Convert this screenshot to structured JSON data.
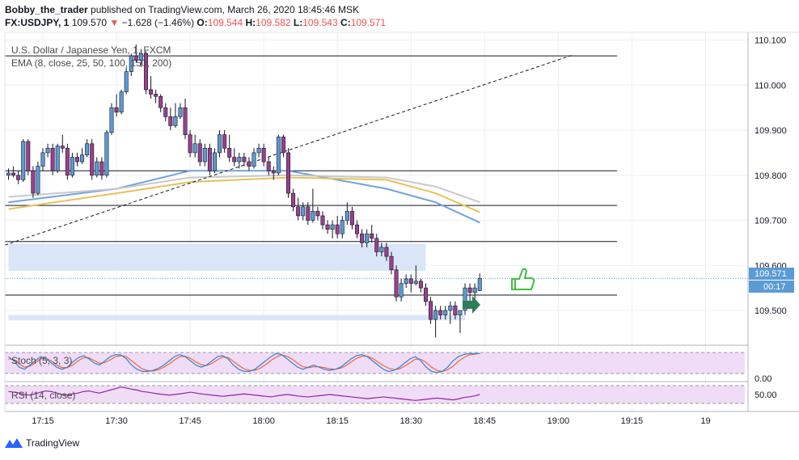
{
  "header": {
    "author": "Bobby_the_trader",
    "published_text": "published on TradingView.com, March 26, 2020 18:45:46 MSK",
    "symbol": "FX:USDJPY, 1",
    "last": "109.570",
    "change": "−1.628 (−1.46%)",
    "o_label": "O:",
    "o_value": "109.544",
    "h_label": "H:",
    "h_value": "109.582",
    "l_label": "L:",
    "l_value": "109.543",
    "c_label": "C:",
    "c_value": "109.571",
    "colors": {
      "up": "#5b9bd5",
      "down": "#9c3f8f",
      "neg": "#ef5350"
    }
  },
  "legend": {
    "instrument": "U.S. Dollar / Japanese Yen, 1, FXCM",
    "ema": "EMA (8, close, 25, 50, 100, 150, 200)",
    "stoch": "Stoch (5, 3, 3)",
    "rsi": "RSI (14, close)"
  },
  "price_axis": {
    "ticks": [
      "110.100",
      "110.000",
      "109.900",
      "109.800",
      "109.700",
      "109.600",
      "109.500"
    ],
    "current_price": "109.571",
    "countdown": "00:17",
    "stoch_tick": "0.00",
    "rsi_tick": "50.00"
  },
  "time_axis": {
    "ticks": [
      "17:15",
      "17:30",
      "17:45",
      "18:00",
      "18:15",
      "18:30",
      "18:45",
      "19:00",
      "19:15",
      "19"
    ]
  },
  "footer": {
    "brand": "TradingView"
  },
  "chart_data": {
    "type": "candlestick",
    "ylim": [
      109.43,
      110.11
    ],
    "levels": [
      110.065,
      109.81,
      109.733,
      109.653,
      109.534
    ],
    "zones": [
      {
        "from": "17:08",
        "to": "18:33",
        "low": 109.588,
        "high": 109.648
      },
      {
        "from": "17:08",
        "to": "18:41",
        "low": 109.478,
        "high": 109.49
      }
    ],
    "trendline": {
      "start": [
        "17:08",
        109.645
      ],
      "end": [
        "19:03",
        110.067
      ]
    },
    "candles": [
      [
        "17:08",
        109.8,
        109.815,
        109.79,
        109.805
      ],
      [
        "17:09",
        109.805,
        109.82,
        109.795,
        109.8
      ],
      [
        "17:10",
        109.8,
        109.81,
        109.78,
        109.79
      ],
      [
        "17:11",
        109.79,
        109.88,
        109.785,
        109.875
      ],
      [
        "17:12",
        109.875,
        109.88,
        109.8,
        109.81
      ],
      [
        "17:13",
        109.81,
        109.82,
        109.75,
        109.76
      ],
      [
        "17:14",
        109.76,
        109.83,
        109.755,
        109.82
      ],
      [
        "17:15",
        109.82,
        109.86,
        109.81,
        109.85
      ],
      [
        "17:16",
        109.85,
        109.87,
        109.84,
        109.86
      ],
      [
        "17:17",
        109.86,
        109.87,
        109.8,
        109.81
      ],
      [
        "17:18",
        109.81,
        109.87,
        109.805,
        109.865
      ],
      [
        "17:19",
        109.865,
        109.89,
        109.85,
        109.86
      ],
      [
        "17:20",
        109.86,
        109.87,
        109.79,
        109.8
      ],
      [
        "17:21",
        109.8,
        109.85,
        109.795,
        109.84
      ],
      [
        "17:22",
        109.84,
        109.85,
        109.82,
        109.83
      ],
      [
        "17:23",
        109.83,
        109.86,
        109.825,
        109.845
      ],
      [
        "17:24",
        109.845,
        109.88,
        109.84,
        109.87
      ],
      [
        "17:25",
        109.87,
        109.88,
        109.79,
        109.8
      ],
      [
        "17:26",
        109.8,
        109.84,
        109.795,
        109.83
      ],
      [
        "17:27",
        109.83,
        109.84,
        109.79,
        109.8
      ],
      [
        "17:28",
        109.8,
        109.9,
        109.795,
        109.895
      ],
      [
        "17:29",
        109.895,
        109.96,
        109.89,
        109.95
      ],
      [
        "17:30",
        109.95,
        109.98,
        109.93,
        109.94
      ],
      [
        "17:31",
        109.94,
        109.99,
        109.935,
        109.985
      ],
      [
        "17:32",
        109.985,
        110.04,
        109.98,
        110.03
      ],
      [
        "17:33",
        110.03,
        110.07,
        110.02,
        110.065
      ],
      [
        "17:34",
        110.065,
        110.09,
        110.05,
        110.055
      ],
      [
        "17:35",
        110.055,
        110.08,
        110.04,
        110.07
      ],
      [
        "17:36",
        110.07,
        110.075,
        109.98,
        109.99
      ],
      [
        "17:37",
        109.99,
        110.02,
        109.97,
        109.98
      ],
      [
        "17:38",
        109.98,
        109.99,
        109.96,
        109.975
      ],
      [
        "17:39",
        109.975,
        109.98,
        109.94,
        109.95
      ],
      [
        "17:40",
        109.95,
        109.96,
        109.92,
        109.93
      ],
      [
        "17:41",
        109.93,
        109.95,
        109.9,
        109.91
      ],
      [
        "17:42",
        109.91,
        109.96,
        109.905,
        109.93
      ],
      [
        "17:43",
        109.93,
        109.96,
        109.925,
        109.95
      ],
      [
        "17:44",
        109.95,
        109.97,
        109.88,
        109.89
      ],
      [
        "17:45",
        109.89,
        109.9,
        109.84,
        109.85
      ],
      [
        "17:46",
        109.85,
        109.89,
        109.84,
        109.87
      ],
      [
        "17:47",
        109.87,
        109.88,
        109.82,
        109.83
      ],
      [
        "17:48",
        109.83,
        109.87,
        109.82,
        109.86
      ],
      [
        "17:49",
        109.86,
        109.87,
        109.8,
        109.81
      ],
      [
        "17:50",
        109.81,
        109.86,
        109.805,
        109.85
      ],
      [
        "17:51",
        109.85,
        109.9,
        109.84,
        109.89
      ],
      [
        "17:52",
        109.89,
        109.9,
        109.85,
        109.86
      ],
      [
        "17:53",
        109.86,
        109.89,
        109.83,
        109.84
      ],
      [
        "17:54",
        109.84,
        109.86,
        109.82,
        109.83
      ],
      [
        "17:55",
        109.83,
        109.85,
        109.815,
        109.84
      ],
      [
        "17:56",
        109.84,
        109.85,
        109.82,
        109.83
      ],
      [
        "17:57",
        109.83,
        109.84,
        109.81,
        109.82
      ],
      [
        "17:58",
        109.82,
        109.86,
        109.815,
        109.85
      ],
      [
        "17:59",
        109.85,
        109.87,
        109.84,
        109.86
      ],
      [
        "18:00",
        109.86,
        109.87,
        109.82,
        109.83
      ],
      [
        "18:01",
        109.83,
        109.84,
        109.8,
        109.81
      ],
      [
        "18:02",
        109.81,
        109.82,
        109.79,
        109.805
      ],
      [
        "18:03",
        109.805,
        109.89,
        109.8,
        109.885
      ],
      [
        "18:04",
        109.885,
        109.89,
        109.84,
        109.85
      ],
      [
        "18:05",
        109.85,
        109.86,
        109.75,
        109.76
      ],
      [
        "18:06",
        109.76,
        109.77,
        109.72,
        109.73
      ],
      [
        "18:07",
        109.73,
        109.75,
        109.7,
        109.71
      ],
      [
        "18:08",
        109.71,
        109.74,
        109.7,
        109.73
      ],
      [
        "18:09",
        109.73,
        109.74,
        109.69,
        109.7
      ],
      [
        "18:10",
        109.7,
        109.77,
        109.695,
        109.72
      ],
      [
        "18:11",
        109.72,
        109.73,
        109.7,
        109.71
      ],
      [
        "18:12",
        109.71,
        109.72,
        109.68,
        109.69
      ],
      [
        "18:13",
        109.69,
        109.7,
        109.67,
        109.68
      ],
      [
        "18:14",
        109.68,
        109.7,
        109.66,
        109.69
      ],
      [
        "18:15",
        109.69,
        109.71,
        109.66,
        109.67
      ],
      [
        "18:16",
        109.67,
        109.71,
        109.66,
        109.7
      ],
      [
        "18:17",
        109.7,
        109.74,
        109.69,
        109.72
      ],
      [
        "18:18",
        109.72,
        109.73,
        109.68,
        109.69
      ],
      [
        "18:19",
        109.69,
        109.7,
        109.66,
        109.67
      ],
      [
        "18:20",
        109.67,
        109.68,
        109.64,
        109.65
      ],
      [
        "18:21",
        109.65,
        109.68,
        109.64,
        109.67
      ],
      [
        "18:22",
        109.67,
        109.69,
        109.65,
        109.66
      ],
      [
        "18:23",
        109.66,
        109.67,
        109.62,
        109.63
      ],
      [
        "18:24",
        109.63,
        109.65,
        109.62,
        109.64
      ],
      [
        "18:25",
        109.64,
        109.65,
        109.61,
        109.62
      ],
      [
        "18:26",
        109.62,
        109.63,
        109.58,
        109.59
      ],
      [
        "18:27",
        109.59,
        109.6,
        109.52,
        109.53
      ],
      [
        "18:28",
        109.53,
        109.57,
        109.52,
        109.56
      ],
      [
        "18:29",
        109.56,
        109.58,
        109.55,
        109.57
      ],
      [
        "18:30",
        109.57,
        109.58,
        109.54,
        109.56
      ],
      [
        "18:31",
        109.56,
        109.6,
        109.555,
        109.565
      ],
      [
        "18:32",
        109.565,
        109.57,
        109.54,
        109.55
      ],
      [
        "18:33",
        109.55,
        109.56,
        109.51,
        109.52
      ],
      [
        "18:34",
        109.52,
        109.53,
        109.47,
        109.48
      ],
      [
        "18:35",
        109.48,
        109.51,
        109.44,
        109.5
      ],
      [
        "18:36",
        109.5,
        109.51,
        109.48,
        109.49
      ],
      [
        "18:37",
        109.49,
        109.51,
        109.48,
        109.5
      ],
      [
        "18:38",
        109.5,
        109.52,
        109.47,
        109.51
      ],
      [
        "18:39",
        109.51,
        109.52,
        109.48,
        109.49
      ],
      [
        "18:40",
        109.49,
        109.5,
        109.45,
        109.5
      ],
      [
        "18:41",
        109.5,
        109.56,
        109.49,
        109.55
      ],
      [
        "18:42",
        109.55,
        109.56,
        109.52,
        109.54
      ],
      [
        "18:43",
        109.54,
        109.56,
        109.52,
        109.55
      ],
      [
        "18:44",
        109.544,
        109.582,
        109.543,
        109.571
      ]
    ],
    "ema_curves": [
      {
        "color": "#6fa3dc",
        "points": [
          [
            "17:08",
            109.74
          ],
          [
            "17:30",
            109.77
          ],
          [
            "17:45",
            109.81
          ],
          [
            "18:05",
            109.81
          ],
          [
            "18:25",
            109.77
          ],
          [
            "18:35",
            109.74
          ],
          [
            "18:44",
            109.695
          ]
        ]
      },
      {
        "color": "#e8c25a",
        "points": [
          [
            "17:08",
            109.725
          ],
          [
            "17:30",
            109.76
          ],
          [
            "17:45",
            109.785
          ],
          [
            "18:05",
            109.795
          ],
          [
            "18:25",
            109.79
          ],
          [
            "18:35",
            109.76
          ],
          [
            "18:44",
            109.718
          ]
        ]
      },
      {
        "color": "#c8c8c8",
        "points": [
          [
            "17:08",
            109.752
          ],
          [
            "17:30",
            109.77
          ],
          [
            "17:45",
            109.795
          ],
          [
            "18:05",
            109.8
          ],
          [
            "18:25",
            109.795
          ],
          [
            "18:35",
            109.775
          ],
          [
            "18:44",
            109.74
          ]
        ]
      }
    ],
    "stoch": {
      "ylim": [
        0,
        100
      ],
      "k": [
        80,
        60,
        30,
        20,
        40,
        60,
        80,
        70,
        50,
        30,
        20,
        30,
        55,
        75,
        85,
        70,
        50,
        40,
        60,
        80,
        90,
        88,
        70,
        40,
        20,
        10,
        10,
        15,
        25,
        40,
        60,
        80,
        90,
        80,
        60,
        40,
        30,
        40,
        60,
        80,
        85,
        70,
        40,
        20,
        10,
        10,
        20,
        40,
        60,
        80,
        95,
        90,
        70,
        50,
        30,
        20,
        30,
        40,
        30,
        20,
        15,
        20,
        30,
        50,
        70,
        85,
        90,
        80,
        60,
        40,
        20,
        10,
        15,
        30,
        50,
        70,
        80,
        60,
        30,
        10,
        5,
        10,
        30,
        60,
        80,
        90,
        95,
        95,
        95
      ],
      "d": [
        70,
        65,
        45,
        30,
        35,
        50,
        70,
        72,
        60,
        40,
        28,
        28,
        40,
        60,
        75,
        75,
        62,
        48,
        52,
        65,
        80,
        85,
        80,
        60,
        40,
        22,
        14,
        12,
        18,
        30,
        45,
        65,
        80,
        82,
        72,
        55,
        42,
        38,
        48,
        65,
        78,
        76,
        58,
        38,
        22,
        15,
        15,
        25,
        42,
        62,
        78,
        88,
        82,
        68,
        48,
        32,
        28,
        32,
        32,
        28,
        22,
        20,
        25,
        38,
        55,
        72,
        82,
        82,
        72,
        55,
        38,
        25,
        18,
        22,
        35,
        52,
        68,
        68,
        52,
        30,
        15,
        10,
        18,
        35,
        58,
        75,
        88,
        92,
        95
      ]
    },
    "rsi": {
      "ylim": [
        0,
        100
      ],
      "values": [
        60,
        58,
        55,
        50,
        48,
        52,
        58,
        62,
        60,
        55,
        50,
        48,
        52,
        55,
        60,
        62,
        58,
        55,
        60,
        65,
        70,
        75,
        72,
        68,
        65,
        60,
        58,
        55,
        52,
        50,
        48,
        50,
        52,
        55,
        58,
        55,
        52,
        50,
        48,
        46,
        44,
        46,
        48,
        50,
        52,
        50,
        48,
        46,
        44,
        42,
        45,
        48,
        50,
        48,
        45,
        43,
        42,
        44,
        46,
        48,
        50,
        48,
        46,
        44,
        42,
        40,
        38,
        36,
        38,
        40,
        42,
        40,
        38,
        36,
        34,
        32,
        30,
        32,
        34,
        36,
        38,
        36,
        34,
        32,
        35,
        40,
        42,
        45,
        50
      ]
    }
  }
}
